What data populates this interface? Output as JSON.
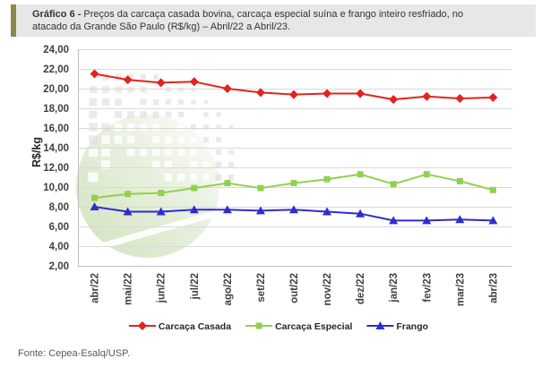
{
  "header": {
    "prefix": "Gráfico 6 -",
    "line1": "Preços da carcaça casada bovina, carcaça especial suína e frango inteiro resfriado, no",
    "line2": "atacado da Grande São Paulo (R$/kg) – Abril/22 a Abril/23."
  },
  "source": "Fonte: Cepea-Esalq/USP.",
  "colors": {
    "header_bar": "#8c8a4b",
    "header_background": "#e7e7e7",
    "gridline": "#d9d9d9",
    "axis_line": "#bfbfbf"
  },
  "chart_data": {
    "type": "line",
    "xlabel": "",
    "ylabel": "R$/kg",
    "ylim": [
      2,
      24
    ],
    "grid": true,
    "legend": "bottom-center",
    "yticks": [
      {
        "value": 2,
        "label": "2,00"
      },
      {
        "value": 4,
        "label": "4,00"
      },
      {
        "value": 6,
        "label": "6,00"
      },
      {
        "value": 8,
        "label": "8,00"
      },
      {
        "value": 10,
        "label": "10,00"
      },
      {
        "value": 12,
        "label": "12,00"
      },
      {
        "value": 14,
        "label": "14,00"
      },
      {
        "value": 16,
        "label": "16,00"
      },
      {
        "value": 18,
        "label": "18,00"
      },
      {
        "value": 20,
        "label": "20,00"
      },
      {
        "value": 22,
        "label": "22,00"
      },
      {
        "value": 24,
        "label": "24,00"
      }
    ],
    "categories": [
      "abr/22",
      "mai/22",
      "jun/22",
      "jul/22",
      "ago/22",
      "set/22",
      "out/22",
      "nov/22",
      "dez/22",
      "jan/23",
      "fev/23",
      "mar/23",
      "abr/23"
    ],
    "series": [
      {
        "name": "Carcaça Casada",
        "color": "#e3231d",
        "marker": "diamond",
        "values": [
          21.5,
          20.9,
          20.6,
          20.7,
          20.0,
          19.6,
          19.4,
          19.5,
          19.5,
          18.9,
          19.2,
          19.0,
          19.1
        ]
      },
      {
        "name": "Carcaça Especial",
        "color": "#92d050",
        "marker": "square",
        "values": [
          8.9,
          9.3,
          9.4,
          9.9,
          10.4,
          9.9,
          10.4,
          10.8,
          11.3,
          10.3,
          11.3,
          10.6,
          9.7
        ]
      },
      {
        "name": "Frango",
        "color": "#2d2dcf",
        "marker": "triangle",
        "values": [
          8.0,
          7.5,
          7.5,
          7.7,
          7.7,
          7.6,
          7.7,
          7.5,
          7.3,
          6.6,
          6.6,
          6.7,
          6.6
        ]
      }
    ]
  }
}
